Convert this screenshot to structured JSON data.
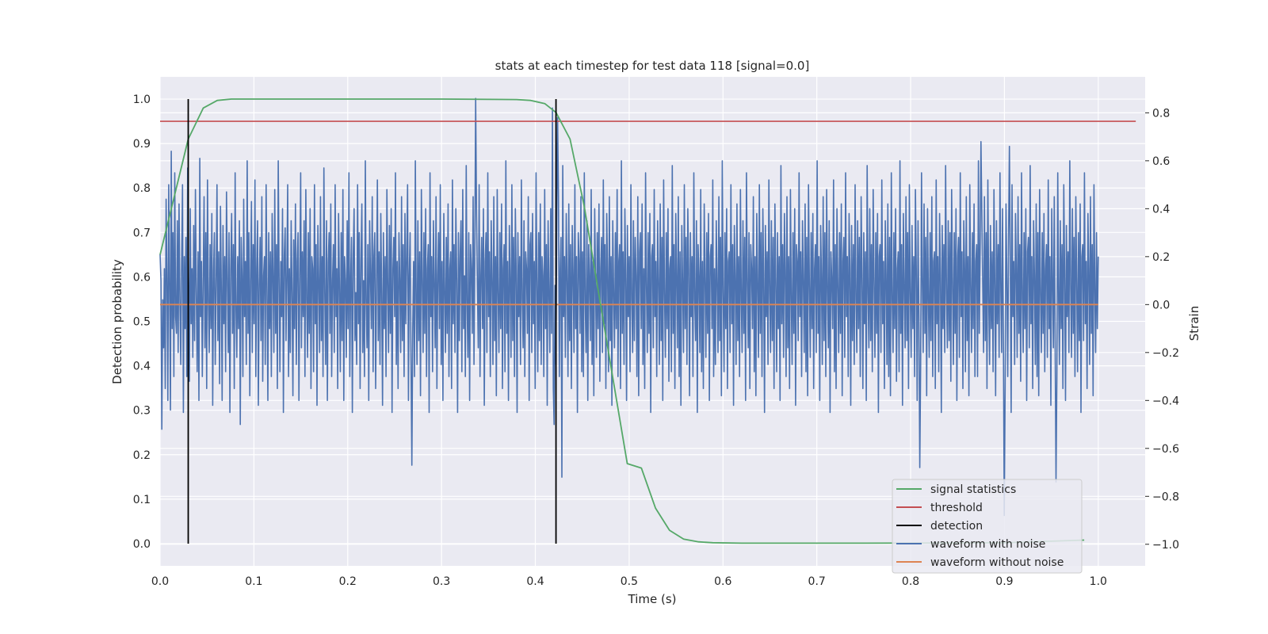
{
  "chart_data": {
    "type": "line",
    "title": "stats at each timestep for test data 118 [signal=0.0]",
    "xlabel": "Time (s)",
    "ylabel": "Detection probability",
    "y2label": "Strain",
    "xlim": [
      0.0,
      1.05
    ],
    "ylim": [
      -0.05,
      1.05
    ],
    "y2lim": [
      -1.09,
      0.95
    ],
    "xticks": [
      "0.0",
      "0.1",
      "0.2",
      "0.3",
      "0.4",
      "0.5",
      "0.6",
      "0.7",
      "0.8",
      "0.9",
      "1.0"
    ],
    "yticks": [
      "0.0",
      "0.1",
      "0.2",
      "0.3",
      "0.4",
      "0.5",
      "0.6",
      "0.7",
      "0.8",
      "0.9",
      "1.0"
    ],
    "y2ticks": [
      "−1.0",
      "−0.8",
      "−0.6",
      "−0.4",
      "−0.2",
      "0.0",
      "0.2",
      "0.4",
      "0.6",
      "0.8"
    ],
    "grid": true,
    "legend_position": "bottom-right",
    "legend": [
      "signal statistics",
      "threshold",
      "detection",
      "waveform with noise",
      "waveform without noise"
    ],
    "colors": {
      "signal_statistics": "#55a868",
      "threshold": "#c44e52",
      "detection": "#000000",
      "waveform_with_noise": "#4c72b0",
      "waveform_without_noise": "#dd8452",
      "plot_background": "#eaeaf2",
      "grid": "#ffffff"
    },
    "signal_statistics": {
      "x": [
        0.0,
        0.015,
        0.03,
        0.046,
        0.061,
        0.076,
        0.091,
        0.107,
        0.2,
        0.3,
        0.38,
        0.395,
        0.41,
        0.422,
        0.437,
        0.452,
        0.467,
        0.482,
        0.498,
        0.513,
        0.528,
        0.543,
        0.558,
        0.574,
        0.589,
        0.62,
        0.75,
        0.9,
        0.985
      ],
      "y": [
        0.65,
        0.78,
        0.91,
        0.98,
        0.997,
        1.0,
        1.0,
        1.0,
        1.0,
        1.0,
        0.999,
        0.997,
        0.99,
        0.97,
        0.91,
        0.76,
        0.57,
        0.38,
        0.18,
        0.17,
        0.08,
        0.03,
        0.01,
        0.004,
        0.002,
        0.001,
        0.001,
        0.002,
        0.008
      ]
    },
    "threshold": {
      "value": 0.95,
      "x": [
        0.0,
        1.04
      ]
    },
    "detection": {
      "x": [
        0.03,
        0.422
      ],
      "y": [
        0.0,
        1.0
      ]
    },
    "waveform_without_noise": {
      "x": [
        0.0,
        1.0
      ],
      "value": 0.0
    },
    "waveform_with_noise": {
      "x_start": 0.0,
      "x_end": 1.0,
      "values": [
        0.21,
        0.1,
        -0.52,
        0.02,
        -0.18,
        0.15,
        -0.35,
        0.44,
        0.11,
        -0.4,
        0.5,
        0.08,
        -0.44,
        0.64,
        -0.1,
        0.3,
        -0.3,
        0.55,
        -0.05,
        -0.12,
        0.35,
        -0.2,
        0.42,
        0.02,
        -0.25,
        0.18,
        0.5,
        -0.45,
        0.2,
        -0.1,
        0.28,
        -0.3,
        0.57,
        0.12,
        -0.32,
        0.4,
        -0.08,
        0.15,
        -0.22,
        0.33,
        -0.15,
        0.48,
        0.05,
        -0.28,
        0.22,
        -0.4,
        0.61,
        -0.05,
        0.18,
        -0.3,
        0.1,
        0.45,
        -0.18,
        0.3,
        -0.35,
        0.52,
        0.02,
        -0.2,
        0.25,
        -0.1,
        0.38,
        -0.42,
        0.14,
        0.3,
        -0.25,
        0.08,
        0.5,
        -0.15,
        0.22,
        -0.33,
        0.41,
        0.06,
        -0.4,
        0.33,
        -0.08,
        0.2,
        -0.28,
        0.47,
        0.1,
        -0.2,
        0.3,
        -0.45,
        0.15,
        0.38,
        -0.12,
        0.25,
        -0.35,
        0.55,
        0.0,
        -0.22,
        0.2,
        -0.1,
        0.35,
        -0.5,
        0.28,
        0.12,
        -0.3,
        0.44,
        -0.05,
        0.18,
        -0.25,
        0.6,
        -0.12,
        0.3,
        -0.38,
        0.1,
        0.43,
        -0.2,
        0.25,
        -0.08,
        0.52,
        -0.3,
        0.15,
        0.35,
        -0.42,
        0.08,
        0.28,
        -0.15,
        0.45,
        -0.32,
        0.12,
        0.2,
        -0.25,
        0.5,
        0.05,
        -0.4,
        0.3,
        -0.1,
        0.22,
        -0.3,
        0.38,
        0.12,
        -0.2,
        0.48,
        -0.12,
        0.25,
        -0.35,
        0.6,
        0.1,
        -0.28,
        0.18,
        -0.05,
        0.4,
        -0.45,
        0.2,
        0.32,
        -0.15,
        0.1,
        0.5,
        -0.3,
        0.15,
        -0.2,
        0.35,
        0.05,
        -0.38,
        0.27,
        -0.1,
        0.42,
        -0.25,
        0.18,
        0.3,
        -0.4,
        0.12,
        0.55,
        -0.18,
        0.22,
        -0.05,
        0.35,
        -0.3,
        0.48,
        0.02,
        -0.22,
        0.3,
        -0.12,
        0.4,
        -0.35,
        0.2,
        0.15,
        -0.28,
        0.5,
        -0.08,
        0.25,
        -0.42,
        0.33,
        0.1,
        -0.2,
        0.45,
        -0.15,
        0.2,
        -0.3,
        0.57,
        0.05,
        -0.25,
        0.35,
        -0.4,
        0.18,
        0.3,
        -0.12,
        0.42,
        -0.3,
        0.1,
        0.25,
        -0.2,
        0.5,
        -0.05,
        0.15,
        -0.35,
        0.38,
        0.08,
        -0.28,
        0.3,
        -0.15,
        0.48,
        -0.4,
        0.2,
        0.1,
        -0.22,
        0.35,
        -0.1,
        0.55,
        -0.3,
        0.12,
        0.28,
        -0.45,
        0.2,
        0.4,
        -0.15,
        0.05,
        -0.25,
        0.5,
        -0.08,
        0.3,
        -0.35,
        0.18,
        0.42,
        -0.2,
        0.1,
        -0.3,
        0.6,
        0.02,
        -0.18,
        0.25,
        -0.4,
        0.35,
        0.12,
        -0.1,
        0.45,
        -0.28,
        0.2,
        0.3,
        -0.35,
        0.08,
        0.52,
        -0.15,
        0.22,
        -0.25,
        0.38,
        0.05,
        -0.42,
        0.3,
        -0.1,
        0.2,
        -0.3,
        0.48,
        0.1,
        -0.2,
        0.33,
        -0.12,
        0.4,
        -0.45,
        0.15,
        0.28,
        -0.05,
        0.55,
        -0.25,
        0.18,
        -0.35,
        0.3,
        0.1,
        -0.2,
        0.45,
        -0.15,
        0.25,
        -0.3,
        0.38,
        -0.08,
        0.2,
        0.5,
        -0.4,
        0.12,
        0.3,
        -0.22,
        0.42,
        -0.1,
        0.18,
        -0.3,
        0.6,
        0.0,
        -0.25,
        0.35,
        -0.15,
        0.22,
        -0.38,
        0.48,
        0.1,
        -0.2,
        0.3,
        -0.12,
        0.4,
        -0.3,
        0.15,
        0.25,
        -0.45,
        0.55,
        -0.05,
        0.2,
        -0.28,
        0.35,
        0.08,
        -0.18,
        0.45,
        -0.35,
        0.12,
        0.3,
        -0.1,
        0.5,
        -0.25,
        0.18,
        -0.4,
        0.38,
        0.05,
        -0.2,
        0.28,
        -0.12,
        0.42,
        -0.3,
        0.15,
        0.22,
        -0.35,
        0.52,
        -0.08,
        0.25,
        -0.2,
        0.4,
        0.1,
        -0.45,
        0.3,
        -0.15,
        0.2,
        0.35,
        -0.28,
        0.48,
        -0.1,
        0.12,
        -0.3,
        0.58,
        0.02,
        -0.22,
        0.3,
        -0.4,
        0.25,
        0.15,
        -0.12,
        0.45,
        -0.25,
        0.2,
        -0.35,
        0.38,
        0.08,
        -0.18,
        0.5,
        -0.3,
        0.12,
        0.28,
        -0.1,
        0.4,
        -0.42,
        0.18,
        0.3,
        -0.2,
        0.55,
        -0.05,
        0.22,
        -0.3,
        0.35,
        0.1,
        -0.25,
        0.45,
        -0.15,
        0.2,
        -0.38,
        0.48,
        0.05,
        -0.2,
        0.3,
        -0.1,
        0.42,
        -0.35,
        0.15,
        0.25,
        -0.28,
        0.6,
        -0.12,
        0.18,
        -0.4,
        0.33,
        0.08,
        -0.22,
        0.5,
        -0.15,
        0.28,
        -0.3,
        0.4,
        0.12,
        -0.45,
        0.3,
        -0.05,
        0.2,
        -0.25,
        0.52,
        0.02,
        -0.18,
        0.35,
        -0.3,
        0.22,
        0.15,
        -0.12,
        0.45,
        -0.4,
        0.25,
        0.3,
        -0.2,
        0.38,
        -0.08,
        0.18,
        -0.35,
        0.55,
        0.1,
        -0.28,
        0.3,
        -0.15,
        0.42,
        -0.25,
        0.2,
        0.12,
        -0.3,
        0.48,
        -0.1,
        0.25,
        -0.42,
        0.35,
        0.05,
        -0.2,
        0.4,
        -0.12,
        0.22,
        -0.35,
        0.5,
        0.08,
        -0.25,
        0.3,
        -0.18,
        0.45,
        -0.3,
        0.15,
        0.28,
        -0.4,
        0.58,
        -0.05,
        0.2,
        -0.22,
        0.38,
        0.1,
        -0.3,
        0.42,
        -0.15,
        0.25,
        -0.35,
        0.33,
        0.12,
        -0.2,
        0.5,
        -0.1,
        0.2,
        -0.45,
        0.3,
        0.18,
        -0.12,
        0.45,
        -0.28,
        0.22,
        -0.3,
        0.55,
        0.02,
        -0.2,
        0.35,
        -0.4,
        0.25,
        0.1,
        -0.15,
        0.48,
        -0.25,
        0.18,
        -0.38,
        0.4,
        0.08,
        -0.22,
        0.3,
        -0.1,
        0.42,
        -0.32,
        0.15,
        0.28,
        -0.2,
        0.52,
        -0.08,
        0.25,
        -0.35,
        0.38,
        0.12,
        -0.28,
        0.45,
        -0.15,
        0.2,
        -0.42,
        0.35,
        0.05,
        -0.18,
        0.3,
        -0.1,
        0.48,
        -0.3,
        0.18,
        0.25,
        -0.35,
        0.6,
        -0.12,
        0.22,
        -0.25,
        0.4,
        0.1,
        -0.4,
        0.33,
        -0.05,
        0.2,
        -0.28,
        0.5,
        0.02,
        -0.2,
        0.35,
        -0.15,
        0.28,
        0.12,
        -0.3,
        0.45,
        -0.38,
        0.22,
        0.3,
        -0.1,
        0.42,
        -0.25,
        0.15,
        -0.35,
        0.55,
        0.08,
        -0.2,
        0.3,
        -0.12,
        0.38,
        -0.45,
        0.2,
        0.25,
        -0.18,
        0.48,
        -0.05,
        0.18,
        -0.3,
        0.35,
        0.1,
        -0.25,
        0.42,
        -0.15,
        0.28,
        -0.4,
        0.52,
        0.05,
        -0.22,
        0.3,
        -0.1,
        0.4,
        -0.32,
        0.15,
        0.2,
        -0.28,
        0.58,
        -0.12,
        0.25,
        -0.35,
        0.38,
        0.12,
        -0.18,
        0.45,
        -0.3,
        0.22,
        -0.42,
        0.33,
        0.08,
        -0.2,
        0.5,
        -0.1,
        0.28,
        -0.25,
        0.4,
        0.15,
        -0.38,
        0.3,
        -0.05,
        0.2,
        -0.3,
        0.55,
        0.02,
        -0.15,
        0.35,
        -0.45,
        0.25,
        0.12,
        -0.2,
        0.48,
        -0.28,
        0.18,
        -0.35,
        0.42,
        0.1,
        -0.22,
        0.3,
        -0.12,
        0.38,
        -0.4,
        0.2,
        0.25,
        -0.1,
        0.52,
        -0.3,
        0.15,
        -0.25,
        0.35,
        0.08,
        -0.2,
        0.45,
        -0.15,
        0.28,
        -0.38,
        0.6,
        0.05,
        -0.28,
        0.3,
        -0.1,
        0.4,
        -0.35,
        0.18,
        0.22,
        -0.2,
        0.5,
        -0.08,
        0.25,
        -0.42,
        0.33,
        0.12,
        -0.25,
        0.42,
        -0.15,
        0.2,
        -0.3,
        0.48,
        0.02,
        -0.2,
        0.35,
        -0.12,
        0.28,
        -0.4,
        0.55,
        0.1,
        -0.18,
        0.3,
        -0.35,
        0.25,
        0.15,
        -0.1,
        0.45,
        -0.28,
        0.2,
        -0.38,
        0.38,
        0.08,
        -0.22,
        0.5,
        -0.12,
        0.3,
        -0.3,
        0.4,
        0.12,
        -0.45,
        0.33,
        -0.05,
        0.22,
        -0.25,
        0.52,
        0.05,
        -0.2,
        0.35,
        -0.15,
        0.28,
        -0.35,
        0.42,
        0.1,
        -0.28,
        0.3,
        -0.1,
        0.2,
        -0.4,
        0.58,
        -0.08,
        0.25,
        -0.22,
        0.38,
        0.15,
        -0.3,
        0.45,
        -0.18,
        0.2,
        -0.35,
        0.48,
        0.02,
        -0.25,
        0.3,
        -0.12,
        0.4,
        -0.42,
        0.25,
        0.18,
        -0.15,
        0.55,
        -0.05,
        0.22,
        -0.3,
        0.35,
        0.1,
        -0.2,
        0.42,
        -0.28,
        0.28,
        -0.38,
        0.5,
        0.08,
        -0.22,
        0.3,
        -0.1,
        0.38,
        -0.35,
        0.15,
        0.25,
        -0.2,
        0.6,
        -0.12,
        0.2,
        -0.4,
        0.33,
        0.12,
        -0.25,
        0.45,
        -0.15,
        0.3,
        -0.3,
        0.48,
        0.05,
        -0.18,
        0.35,
        -0.45,
        0.22,
        0.1,
        -0.1,
        0.52,
        -0.28,
        0.25,
        -0.35,
        0.4,
        0.08,
        -0.2,
        0.3,
        -0.12,
        0.42,
        -0.38,
        0.18,
        0.28,
        -0.22,
        0.55,
        -0.05,
        0.2,
        -0.3,
        0.38,
        0.15,
        -0.42,
        0.33,
        -0.15,
        0.25,
        -0.25,
        0.5,
        0.02,
        -0.2,
        0.35,
        -0.1,
        0.28,
        -0.3,
        0.45,
        0.12,
        -0.35,
        0.3,
        -0.08,
        0.22,
        -0.4,
        0.58,
        0.05,
        -0.18,
        0.4,
        -0.15,
        0.25,
        -0.28,
        0.48,
        0.1,
        -0.22,
        0.3,
        -0.12,
        0.38,
        -0.45,
        0.2,
        0.25,
        -0.2,
        0.52,
        -0.08,
        0.18,
        -0.35,
        0.35,
        0.12,
        -0.25,
        0.42,
        -0.3,
        0.28,
        -0.38,
        0.55,
        0.02,
        -0.2,
        0.3,
        -0.1,
        0.4,
        -0.32,
        0.15,
        0.22,
        -0.28,
        0.6,
        -0.12,
        0.25,
        -0.42,
        0.38,
        0.08,
        -0.18,
        0.45,
        -0.15,
        0.3,
        -0.35,
        0.5,
        0.05,
        -0.22,
        0.33,
        -0.1,
        0.2,
        -0.3,
        0.48,
        0.15,
        -0.4,
        0.35,
        -0.05,
        0.25,
        -0.25,
        0.55,
        0.1,
        -0.2,
        0.42,
        -0.12,
        0.28,
        -0.38,
        0.4,
        0.02,
        -0.22,
        0.3,
        -0.15,
        0.45,
        -0.3,
        0.18,
        0.22,
        -0.35,
        0.52,
        -0.08,
        0.2,
        -0.28,
        0.38,
        0.12,
        -0.45,
        0.33,
        -0.1,
        0.25,
        -0.2,
        0.58,
        0.05,
        -0.18,
        0.35,
        -0.15,
        0.3,
        -0.32,
        0.48,
        0.1,
        -0.25,
        0.3,
        -0.12,
        0.4,
        -0.4,
        0.2,
        0.28,
        -0.22,
        0.55,
        -0.05,
        0.22,
        -0.35,
        0.35,
        0.15,
        -0.28,
        0.45,
        -0.15,
        0.2,
        -0.38,
        0.5,
        0.08,
        -0.2,
        0.3,
        -0.1,
        0.42,
        -0.3,
        0.18,
        0.25,
        -0.3,
        0.6,
        -0.12,
        0.2,
        -0.42,
        0.38,
        0.1,
        -0.2,
        0.45,
        -0.15,
        0.3,
        -0.35,
        0.52,
        0.02,
        -0.25,
        0.33,
        -0.1,
        0.22,
        -0.28,
        0.48,
        0.12,
        -0.38,
        0.35,
        -0.08,
        0.25,
        -0.22,
        0.55,
        0.05,
        -0.2,
        0.4,
        -0.12,
        0.28,
        -0.35,
        0.42,
        0.1,
        -0.3,
        0.3,
        -0.15,
        0.2,
        -0.45,
        0.5,
        -0.05,
        0.18,
        -0.25,
        0.38,
        0.15,
        -0.22,
        0.45,
        -0.12,
        0.25,
        -0.32,
        0.55,
        0.02,
        -0.2,
        0.3,
        -0.1,
        0.4,
        -0.4,
        0.22,
        0.28,
        -0.18,
        0.58,
        -0.08,
        0.2,
        -0.35,
        0.35,
        0.12,
        -0.25,
        0.42,
        -0.3,
        0.3,
        -0.38,
        0.48,
        0.05,
        -0.2,
        0.3,
        -0.12,
        0.38,
        -0.28,
        0.15,
        0.25,
        -0.22,
        0.52,
        -0.1,
        0.2,
        -0.42,
        0.4,
        0.1,
        -0.18,
        0.45,
        -0.15,
        0.3,
        -0.3,
        0.55,
        0.02,
        -0.25,
        0.35,
        -0.1,
        0.25,
        -0.35,
        0.5,
        0.12,
        -0.4,
        0.33,
        -0.05,
        0.22,
        -0.2,
        0.6,
        0.08,
        -0.22,
        0.4,
        -0.12,
        0.28,
        -0.3,
        0.45,
        0.1,
        -0.28,
        0.3,
        -0.15,
        0.42,
        -0.45,
        0.2,
        0.25,
        -0.15,
        0.55,
        -0.08,
        0.18,
        -0.35,
        0.38,
        0.15,
        -0.25,
        0.45,
        -0.12,
        0.25,
        -0.38,
        0.5,
        0.05,
        -0.2,
        0.3,
        -0.1,
        0.2
      ],
      "spikes": [
        {
          "x": 0.336,
          "y": 0.86
        },
        {
          "x": 0.418,
          "y": 0.82
        },
        {
          "x": 0.42,
          "y": -0.5
        },
        {
          "x": 0.424,
          "y": 0.78
        },
        {
          "x": 0.428,
          "y": -0.72
        },
        {
          "x": 0.81,
          "y": -0.68
        },
        {
          "x": 0.875,
          "y": 0.68
        },
        {
          "x": 0.9,
          "y": -0.88
        },
        {
          "x": 0.905,
          "y": 0.66
        },
        {
          "x": 0.955,
          "y": -0.74
        },
        {
          "x": 0.268,
          "y": -0.67
        }
      ]
    }
  }
}
